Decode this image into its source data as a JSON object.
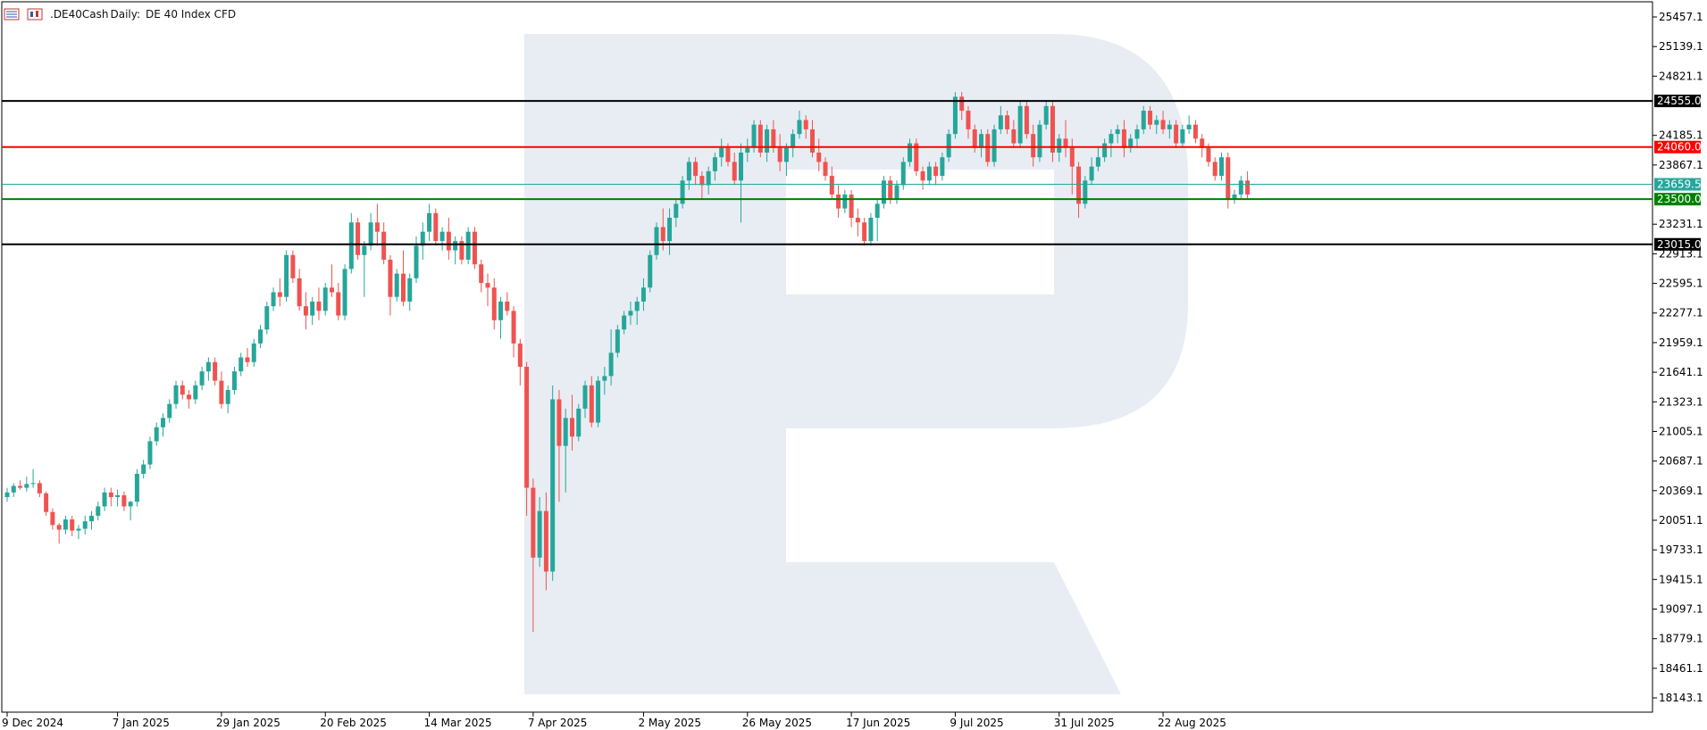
{
  "header": {
    "symbol": ".DE40Cash",
    "timeframe": "Daily:",
    "description": "DE 40 Index CFD",
    "icons": [
      "chart-list-icon",
      "candles-icon"
    ]
  },
  "colors": {
    "bull": "#26a69a",
    "bear": "#ef5350",
    "grid_frame": "#000000",
    "watermark": "#e8edf4"
  },
  "chart_data": {
    "type": "candlestick",
    "title": ".DE40Cash, Daily:  DE 40 Index CFD",
    "ylim": [
      17990,
      25620
    ],
    "y_ticks": [
      "25457.1",
      "25139.1",
      "24821.1",
      "24185.1",
      "23867.1",
      "23231.1",
      "22913.1",
      "22595.1",
      "22277.1",
      "21959.1",
      "21641.1",
      "21323.1",
      "21005.1",
      "20687.1",
      "20369.1",
      "20051.1",
      "19733.1",
      "19415.1",
      "19097.1",
      "18779.1",
      "18461.1",
      "18143.1"
    ],
    "x_ticks": [
      {
        "label": "9 Dec 2024",
        "bar": 0
      },
      {
        "label": "7 Jan 2025",
        "bar": 17
      },
      {
        "label": "29 Jan 2025",
        "bar": 33
      },
      {
        "label": "20 Feb 2025",
        "bar": 49
      },
      {
        "label": "14 Mar 2025",
        "bar": 65
      },
      {
        "label": "7 Apr 2025",
        "bar": 81
      },
      {
        "label": "2 May 2025",
        "bar": 98
      },
      {
        "label": "26 May 2025",
        "bar": 114
      },
      {
        "label": "17 Jun 2025",
        "bar": 130
      },
      {
        "label": "9 Jul 2025",
        "bar": 146
      },
      {
        "label": "31 Jul 2025",
        "bar": 162
      },
      {
        "label": "22 Aug 2025",
        "bar": 178
      }
    ],
    "levels": [
      {
        "value": 24555.0,
        "label": "24555.0",
        "color": "#000000",
        "text": "#ffffff"
      },
      {
        "value": 24060.0,
        "label": "24060.0",
        "color": "#ff0000",
        "text": "#ffffff"
      },
      {
        "value": 23659.5,
        "label": "23659.5",
        "color": "#26a69a",
        "text": "#ffffff",
        "thin": true
      },
      {
        "value": 23500.0,
        "label": "23500.0",
        "color": "#008000",
        "text": "#ffffff"
      },
      {
        "value": 23015.0,
        "label": "23015.0",
        "color": "#000000",
        "text": "#ffffff"
      }
    ],
    "candles": [
      [
        20300,
        20400,
        20250,
        20350
      ],
      [
        20350,
        20450,
        20300,
        20420
      ],
      [
        20420,
        20480,
        20380,
        20400
      ],
      [
        20400,
        20520,
        20360,
        20440
      ],
      [
        20440,
        20600,
        20400,
        20450
      ],
      [
        20450,
        20480,
        20300,
        20340
      ],
      [
        20340,
        20360,
        20100,
        20140
      ],
      [
        20140,
        20180,
        19950,
        20000
      ],
      [
        20000,
        20020,
        19800,
        19950
      ],
      [
        19950,
        20100,
        19900,
        20060
      ],
      [
        20060,
        20100,
        19880,
        19940
      ],
      [
        19940,
        20000,
        19850,
        19960
      ],
      [
        19960,
        20100,
        19900,
        20040
      ],
      [
        20040,
        20150,
        19950,
        20100
      ],
      [
        20100,
        20250,
        20050,
        20200
      ],
      [
        20200,
        20400,
        20150,
        20350
      ],
      [
        20350,
        20400,
        20200,
        20300
      ],
      [
        20300,
        20380,
        20200,
        20320
      ],
      [
        20320,
        20360,
        20150,
        20200
      ],
      [
        20200,
        20260,
        20050,
        20250
      ],
      [
        20250,
        20600,
        20200,
        20550
      ],
      [
        20550,
        20700,
        20500,
        20650
      ],
      [
        20650,
        20950,
        20600,
        20900
      ],
      [
        20900,
        21100,
        20850,
        21050
      ],
      [
        21050,
        21200,
        20950,
        21150
      ],
      [
        21150,
        21350,
        21100,
        21300
      ],
      [
        21300,
        21550,
        21250,
        21500
      ],
      [
        21500,
        21550,
        21350,
        21400
      ],
      [
        21400,
        21450,
        21250,
        21350
      ],
      [
        21350,
        21550,
        21300,
        21500
      ],
      [
        21500,
        21700,
        21450,
        21650
      ],
      [
        21650,
        21800,
        21550,
        21750
      ],
      [
        21750,
        21800,
        21500,
        21550
      ],
      [
        21550,
        21650,
        21250,
        21300
      ],
      [
        21300,
        21500,
        21200,
        21450
      ],
      [
        21450,
        21700,
        21400,
        21650
      ],
      [
        21650,
        21850,
        21600,
        21800
      ],
      [
        21800,
        21900,
        21700,
        21750
      ],
      [
        21750,
        22000,
        21700,
        21950
      ],
      [
        21950,
        22150,
        21900,
        22100
      ],
      [
        22100,
        22400,
        22050,
        22350
      ],
      [
        22350,
        22550,
        22300,
        22500
      ],
      [
        22500,
        22650,
        22350,
        22450
      ],
      [
        22450,
        22950,
        22400,
        22900
      ],
      [
        22900,
        22950,
        22600,
        22650
      ],
      [
        22650,
        22750,
        22300,
        22350
      ],
      [
        22350,
        22500,
        22100,
        22250
      ],
      [
        22250,
        22450,
        22150,
        22400
      ],
      [
        22400,
        22550,
        22200,
        22300
      ],
      [
        22300,
        22600,
        22250,
        22550
      ],
      [
        22550,
        22800,
        22450,
        22500
      ],
      [
        22500,
        22600,
        22200,
        22250
      ],
      [
        22250,
        22800,
        22200,
        22750
      ],
      [
        22750,
        23350,
        22700,
        23250
      ],
      [
        23250,
        23300,
        22850,
        22900
      ],
      [
        22900,
        23050,
        22450,
        23000
      ],
      [
        23000,
        23350,
        22950,
        23250
      ],
      [
        23250,
        23450,
        23000,
        23150
      ],
      [
        23150,
        23250,
        22800,
        22850
      ],
      [
        22850,
        22900,
        22250,
        22450
      ],
      [
        22450,
        22750,
        22400,
        22700
      ],
      [
        22700,
        22950,
        22350,
        22400
      ],
      [
        22400,
        22700,
        22300,
        22650
      ],
      [
        22650,
        23100,
        22600,
        23000
      ],
      [
        23000,
        23250,
        22850,
        23150
      ],
      [
        23150,
        23450,
        23050,
        23350
      ],
      [
        23350,
        23400,
        23000,
        23050
      ],
      [
        23050,
        23200,
        22950,
        23150
      ],
      [
        23150,
        23300,
        22850,
        22950
      ],
      [
        22950,
        23100,
        22800,
        23050
      ],
      [
        23050,
        23100,
        22800,
        22850
      ],
      [
        22850,
        23200,
        22800,
        23150
      ],
      [
        23150,
        23200,
        22750,
        22800
      ],
      [
        22800,
        22850,
        22500,
        22600
      ],
      [
        22600,
        22700,
        22350,
        22550
      ],
      [
        22550,
        22650,
        22100,
        22200
      ],
      [
        22200,
        22450,
        22000,
        22400
      ],
      [
        22400,
        22500,
        22250,
        22300
      ],
      [
        22300,
        22350,
        21800,
        21950
      ],
      [
        21950,
        22000,
        21500,
        21700
      ],
      [
        21700,
        21750,
        20100,
        20400
      ],
      [
        20400,
        20500,
        18850,
        19650
      ],
      [
        19650,
        20300,
        19550,
        20150
      ],
      [
        20150,
        20350,
        19300,
        19500
      ],
      [
        19500,
        21500,
        19400,
        21350
      ],
      [
        21350,
        21450,
        20250,
        20850
      ],
      [
        20850,
        21250,
        20350,
        21150
      ],
      [
        21150,
        21400,
        20800,
        20950
      ],
      [
        20950,
        21300,
        20900,
        21250
      ],
      [
        21250,
        21550,
        21150,
        21500
      ],
      [
        21500,
        21600,
        21050,
        21100
      ],
      [
        21100,
        21600,
        21050,
        21550
      ],
      [
        21550,
        21700,
        21400,
        21600
      ],
      [
        21600,
        22100,
        21500,
        21850
      ],
      [
        21850,
        22150,
        21800,
        22100
      ],
      [
        22100,
        22300,
        22050,
        22250
      ],
      [
        22250,
        22400,
        22150,
        22300
      ],
      [
        22300,
        22450,
        22150,
        22400
      ],
      [
        22400,
        22650,
        22300,
        22550
      ],
      [
        22550,
        22950,
        22500,
        22900
      ],
      [
        22900,
        23250,
        22850,
        23200
      ],
      [
        23200,
        23400,
        22950,
        23050
      ],
      [
        23050,
        23400,
        22900,
        23300
      ],
      [
        23300,
        23500,
        23200,
        23450
      ],
      [
        23450,
        23750,
        23400,
        23700
      ],
      [
        23700,
        23950,
        23600,
        23900
      ],
      [
        23900,
        23950,
        23650,
        23750
      ],
      [
        23750,
        23800,
        23500,
        23650
      ],
      [
        23650,
        23850,
        23550,
        23800
      ],
      [
        23800,
        24000,
        23700,
        23950
      ],
      [
        23950,
        24150,
        23850,
        24050
      ],
      [
        24050,
        24100,
        23850,
        23900
      ],
      [
        23900,
        24000,
        23650,
        23700
      ],
      [
        23700,
        24100,
        23250,
        24000
      ],
      [
        24000,
        24150,
        23900,
        24050
      ],
      [
        24050,
        24350,
        24000,
        24300
      ],
      [
        24300,
        24350,
        23950,
        24000
      ],
      [
        24000,
        24300,
        23900,
        24250
      ],
      [
        24250,
        24350,
        24000,
        24050
      ],
      [
        24050,
        24200,
        23800,
        23900
      ],
      [
        23900,
        24100,
        23750,
        24050
      ],
      [
        24050,
        24250,
        23950,
        24200
      ],
      [
        24200,
        24450,
        24150,
        24350
      ],
      [
        24350,
        24400,
        24150,
        24250
      ],
      [
        24250,
        24350,
        23950,
        24000
      ],
      [
        24000,
        24150,
        23800,
        23900
      ],
      [
        23900,
        23950,
        23700,
        23750
      ],
      [
        23750,
        23850,
        23500,
        23550
      ],
      [
        23550,
        23650,
        23300,
        23400
      ],
      [
        23400,
        23600,
        23350,
        23550
      ],
      [
        23550,
        23600,
        23200,
        23300
      ],
      [
        23300,
        23400,
        23100,
        23250
      ],
      [
        23250,
        23300,
        23000,
        23050
      ],
      [
        23050,
        23350,
        23000,
        23300
      ],
      [
        23300,
        23500,
        23050,
        23450
      ],
      [
        23450,
        23750,
        23400,
        23700
      ],
      [
        23700,
        23750,
        23450,
        23500
      ],
      [
        23500,
        23700,
        23450,
        23650
      ],
      [
        23650,
        23950,
        23600,
        23900
      ],
      [
        23900,
        24150,
        23850,
        24100
      ],
      [
        24100,
        24150,
        23750,
        23800
      ],
      [
        23800,
        23850,
        23600,
        23700
      ],
      [
        23700,
        23900,
        23650,
        23850
      ],
      [
        23850,
        23900,
        23650,
        23750
      ],
      [
        23750,
        24000,
        23700,
        23950
      ],
      [
        23950,
        24250,
        23900,
        24200
      ],
      [
        24200,
        24650,
        24150,
        24600
      ],
      [
        24600,
        24650,
        24350,
        24450
      ],
      [
        24450,
        24500,
        24150,
        24250
      ],
      [
        24250,
        24300,
        24000,
        24050
      ],
      [
        24050,
        24250,
        23950,
        24200
      ],
      [
        24200,
        24250,
        23850,
        23900
      ],
      [
        23900,
        24300,
        23850,
        24250
      ],
      [
        24250,
        24500,
        24200,
        24400
      ],
      [
        24400,
        24450,
        24200,
        24250
      ],
      [
        24250,
        24350,
        24050,
        24100
      ],
      [
        24100,
        24550,
        24050,
        24500
      ],
      [
        24500,
        24550,
        24150,
        24200
      ],
      [
        24200,
        24300,
        23850,
        23950
      ],
      [
        23950,
        24350,
        23900,
        24300
      ],
      [
        24300,
        24550,
        24250,
        24500
      ],
      [
        24500,
        24550,
        23900,
        24000
      ],
      [
        24000,
        24200,
        23900,
        24150
      ],
      [
        24150,
        24350,
        23950,
        24050
      ],
      [
        24050,
        24150,
        23550,
        23850
      ],
      [
        23850,
        23900,
        23300,
        23450
      ],
      [
        23450,
        23750,
        23400,
        23700
      ],
      [
        23700,
        23950,
        23650,
        23850
      ],
      [
        23850,
        24050,
        23800,
        23950
      ],
      [
        23950,
        24150,
        23900,
        24100
      ],
      [
        24100,
        24250,
        23950,
        24200
      ],
      [
        24200,
        24300,
        24100,
        24250
      ],
      [
        24250,
        24350,
        23950,
        24050
      ],
      [
        24050,
        24200,
        24000,
        24150
      ],
      [
        24150,
        24300,
        24050,
        24250
      ],
      [
        24250,
        24500,
        24200,
        24450
      ],
      [
        24450,
        24500,
        24250,
        24300
      ],
      [
        24300,
        24400,
        24200,
        24350
      ],
      [
        24350,
        24450,
        24200,
        24250
      ],
      [
        24250,
        24350,
        24150,
        24300
      ],
      [
        24300,
        24350,
        24050,
        24100
      ],
      [
        24100,
        24300,
        24050,
        24250
      ],
      [
        24250,
        24400,
        24200,
        24300
      ],
      [
        24300,
        24350,
        24100,
        24150
      ],
      [
        24150,
        24200,
        23950,
        24050
      ],
      [
        24050,
        24100,
        23850,
        23900
      ],
      [
        23900,
        23950,
        23700,
        23750
      ],
      [
        23750,
        24000,
        23700,
        23950
      ],
      [
        23950,
        24000,
        23400,
        23500
      ],
      [
        23500,
        23600,
        23450,
        23550
      ],
      [
        23550,
        23750,
        23500,
        23700
      ],
      [
        23700,
        23800,
        23500,
        23550
      ]
    ]
  }
}
